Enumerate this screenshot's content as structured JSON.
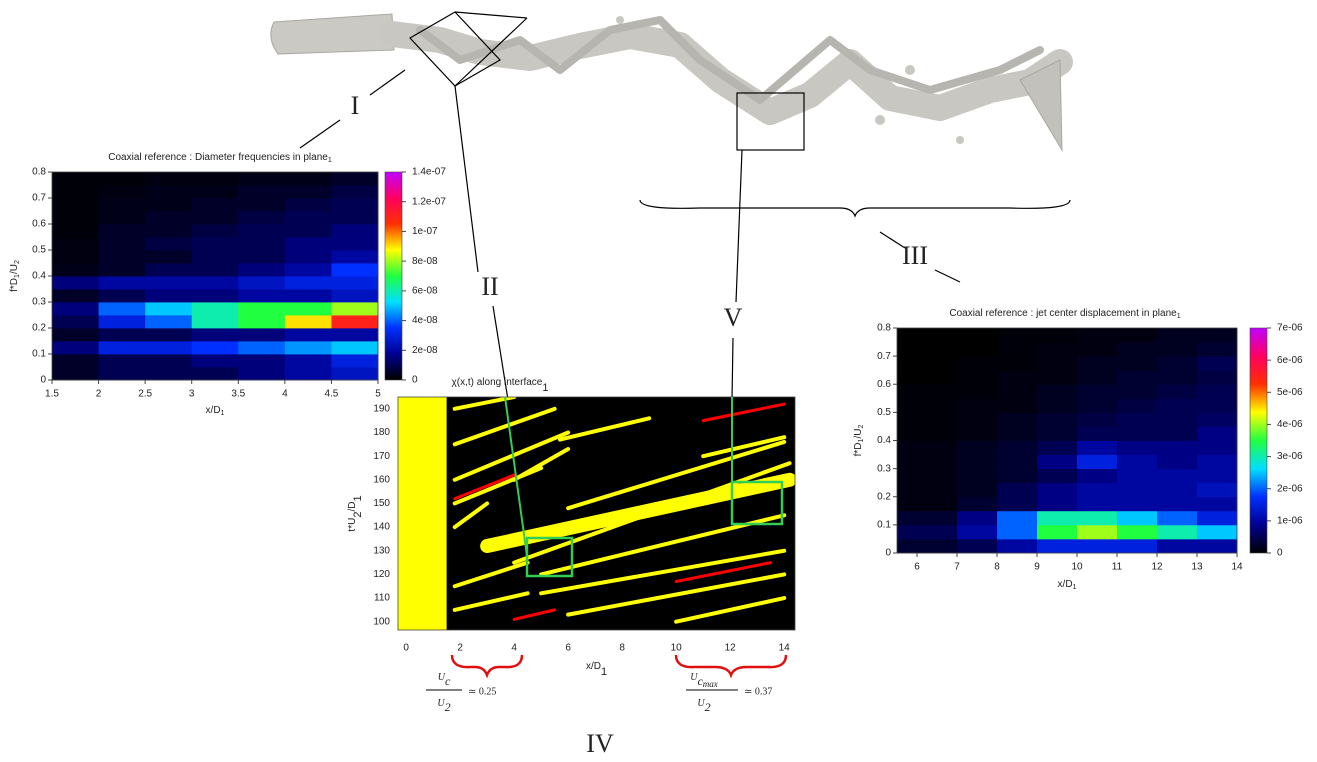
{
  "figure": {
    "labels": [
      "I",
      "II",
      "III",
      "IV",
      "V"
    ],
    "formulas": [
      {
        "num": "U",
        "num_sub": "c",
        "den": "U",
        "den_sub": "2",
        "rel": "≃ 0.25"
      },
      {
        "num": "U",
        "num_sub": "c",
        "num_subsub": "max",
        "den": "U",
        "den_sub": "2",
        "rel": "≃ 0.37"
      }
    ]
  },
  "chart_data": [
    {
      "type": "heatmap",
      "title": [
        {
          "text": "Coaxial reference : Diameter frequencies in plane"
        },
        {
          "text": "1",
          "sub": true
        }
      ],
      "xlabel": [
        {
          "text": "x/D"
        },
        {
          "text": "1",
          "sub": true
        }
      ],
      "ylabel": [
        {
          "text": "f*D"
        },
        {
          "text": "1",
          "sub": true
        },
        {
          "text": "/U"
        },
        {
          "text": "2",
          "sub": true
        }
      ],
      "xlim": [
        1.5,
        5
      ],
      "xticks": [
        1.5,
        2,
        2.5,
        3,
        3.5,
        4,
        4.5,
        5
      ],
      "ylim": [
        0,
        0.8
      ],
      "yticks": [
        0,
        0.1,
        0.2,
        0.3,
        0.4,
        0.5,
        0.6,
        0.7,
        0.8
      ],
      "zlim": [
        0,
        1.4e-07
      ],
      "zticks": [
        0,
        {
          "value": 2e-08,
          "label": "2e-08"
        },
        {
          "value": 4e-08,
          "label": "4e-08"
        },
        {
          "value": 6e-08,
          "label": "6e-08"
        },
        {
          "value": 8e-08,
          "label": "8e-08"
        },
        {
          "value": 1e-07,
          "label": "1e-07"
        },
        {
          "value": 1.2e-07,
          "label": "1.2e-07"
        },
        {
          "value": 1.4e-07,
          "label": "1.4e-07"
        }
      ],
      "colormap": [
        "#000000",
        "#000090",
        "#0030ff",
        "#00e0ff",
        "#20ff40",
        "#ffff00",
        "#ff3000",
        "#ff0060",
        "#c000ff"
      ],
      "xbins": [
        1.5,
        2,
        2.5,
        3,
        3.5,
        4,
        4.5,
        5
      ],
      "ybins": [
        0,
        0.05,
        0.1,
        0.15,
        0.2,
        0.25,
        0.3,
        0.35,
        0.4,
        0.45,
        0.5,
        0.55,
        0.6,
        0.65,
        0.7,
        0.75,
        0.8
      ],
      "z": [
        [
          5e-09,
          1e-08,
          1e-08,
          1e-08,
          1.5e-08,
          2e-08,
          2.5e-08
        ],
        [
          5e-09,
          1e-08,
          1e-08,
          1.5e-08,
          1.5e-08,
          2e-08,
          3e-08
        ],
        [
          1.5e-08,
          3e-08,
          3e-08,
          3.5e-08,
          4e-08,
          4.5e-08,
          5e-08
        ],
        [
          5e-09,
          1e-08,
          1e-08,
          1.5e-08,
          1.5e-08,
          2e-08,
          2e-08
        ],
        [
          1e-08,
          3e-08,
          4e-08,
          6e-08,
          7e-08,
          9e-08,
          1.1e-07
        ],
        [
          1.5e-08,
          4e-08,
          5e-08,
          6e-08,
          7e-08,
          7e-08,
          8e-08
        ],
        [
          5e-09,
          1e-08,
          1.5e-08,
          1.5e-08,
          2e-08,
          2e-08,
          2.5e-08
        ],
        [
          1.5e-08,
          2e-08,
          2e-08,
          2e-08,
          2.5e-08,
          3e-08,
          3e-08
        ],
        [
          3e-09,
          5e-09,
          1e-08,
          1e-08,
          1.5e-08,
          2e-08,
          3.5e-08
        ],
        [
          2e-09,
          5e-09,
          5e-09,
          1e-08,
          1e-08,
          1.5e-08,
          2e-08
        ],
        [
          2e-09,
          5e-09,
          8e-09,
          1e-08,
          1e-08,
          1.5e-08,
          1.5e-08
        ],
        [
          1e-09,
          5e-09,
          5e-09,
          8e-09,
          1e-08,
          1e-08,
          1.5e-08
        ],
        [
          1e-09,
          3e-09,
          5e-09,
          5e-09,
          8e-09,
          1e-08,
          1e-08
        ],
        [
          1e-09,
          3e-09,
          3e-09,
          5e-09,
          5e-09,
          8e-09,
          1e-08
        ],
        [
          1e-09,
          2e-09,
          3e-09,
          3e-09,
          5e-09,
          5e-09,
          8e-09
        ],
        [
          1e-09,
          1e-09,
          2e-09,
          2e-09,
          3e-09,
          3e-09,
          5e-09
        ]
      ]
    },
    {
      "type": "streaks",
      "title": [
        {
          "text": "χ(x,t) along interface"
        },
        {
          "text": "1",
          "sub": true
        }
      ],
      "xlabel": [
        {
          "text": "x/D"
        },
        {
          "text": "1",
          "sub": true
        }
      ],
      "ylabel": [
        {
          "text": "t*U"
        },
        {
          "text": "2",
          "sub": true
        },
        {
          "text": "/D"
        },
        {
          "text": "1",
          "sub": true
        }
      ],
      "xlim": [
        -0.3,
        14.4
      ],
      "xticks": [
        0,
        2,
        4,
        6,
        8,
        10,
        12,
        14
      ],
      "ylim": [
        96.5,
        195
      ],
      "yticks": [
        100,
        110,
        120,
        130,
        140,
        150,
        160,
        170,
        180,
        190
      ],
      "background": "#000000",
      "region": {
        "color": "#ffff00",
        "x": [
          -0.3,
          1.5
        ]
      },
      "series": [
        {
          "color": "#ffff00",
          "width": 4,
          "segments": [
            {
              "x": [
                1.8,
                4
              ],
              "y": [
                190,
                195
              ]
            },
            {
              "x": [
                1.8,
                5.5
              ],
              "y": [
                175,
                190
              ]
            },
            {
              "x": [
                1.8,
                6
              ],
              "y": [
                160,
                180
              ]
            },
            {
              "x": [
                1.8,
                5
              ],
              "y": [
                150,
                165
              ]
            },
            {
              "x": [
                4,
                6
              ],
              "y": [
                160,
                173
              ]
            },
            {
              "x": [
                1.8,
                3
              ],
              "y": [
                140,
                150
              ]
            },
            {
              "x": [
                1.8,
                4.5
              ],
              "y": [
                115,
                125
              ]
            },
            {
              "x": [
                1.8,
                4.5
              ],
              "y": [
                105,
                112
              ]
            },
            {
              "x": [
                4,
                14.2
              ],
              "y": [
                125,
                167
              ]
            },
            {
              "x": [
                6,
                14
              ],
              "y": [
                148,
                176
              ]
            },
            {
              "x": [
                5,
                14
              ],
              "y": [
                120,
                145
              ]
            },
            {
              "x": [
                5,
                14
              ],
              "y": [
                112,
                130
              ]
            },
            {
              "x": [
                6,
                14
              ],
              "y": [
                103,
                120
              ]
            },
            {
              "x": [
                10,
                14
              ],
              "y": [
                100,
                110
              ]
            },
            {
              "x": [
                5.7,
                9
              ],
              "y": [
                177,
                186
              ]
            },
            {
              "x": [
                11,
                14
              ],
              "y": [
                170,
                178
              ]
            }
          ]
        },
        {
          "color": "#ffff00",
          "width": 14,
          "segments": [
            {
              "x": [
                3,
                14.2
              ],
              "y": [
                132,
                160
              ]
            }
          ]
        },
        {
          "color": "#ff0000",
          "width": 3,
          "segments": [
            {
              "x": [
                1.8,
                4
              ],
              "y": [
                152,
                162
              ]
            },
            {
              "x": [
                4,
                5.5
              ],
              "y": [
                101,
                105
              ]
            },
            {
              "x": [
                10,
                13.5
              ],
              "y": [
                117,
                125
              ]
            },
            {
              "x": [
                11,
                14
              ],
              "y": [
                185,
                192
              ]
            }
          ]
        }
      ]
    },
    {
      "type": "heatmap",
      "title": [
        {
          "text": "Coaxial reference : jet center displacement in plane"
        },
        {
          "text": "1",
          "sub": true
        }
      ],
      "xlabel": [
        {
          "text": "x/D"
        },
        {
          "text": "1",
          "sub": true
        }
      ],
      "ylabel": [
        {
          "text": "f*D"
        },
        {
          "text": "1",
          "sub": true
        },
        {
          "text": "/U"
        },
        {
          "text": "2",
          "sub": true
        }
      ],
      "xlim": [
        5.5,
        14
      ],
      "xticks": [
        6,
        7,
        8,
        9,
        10,
        11,
        12,
        13,
        14
      ],
      "ylim": [
        0,
        0.8
      ],
      "yticks": [
        0,
        0.1,
        0.2,
        0.3,
        0.4,
        0.5,
        0.6,
        0.7,
        0.8
      ],
      "zlim": [
        0,
        7e-06
      ],
      "zticks": [
        0,
        {
          "value": 1e-06,
          "label": "1e-06"
        },
        {
          "value": 2e-06,
          "label": "2e-06"
        },
        {
          "value": 3e-06,
          "label": "3e-06"
        },
        {
          "value": 4e-06,
          "label": "4e-06"
        },
        {
          "value": 5e-06,
          "label": "5e-06"
        },
        {
          "value": 6e-06,
          "label": "6e-06"
        },
        {
          "value": 7e-06,
          "label": "7e-06"
        }
      ],
      "colormap": [
        "#000000",
        "#000090",
        "#0030ff",
        "#00e0ff",
        "#20ff40",
        "#ffff00",
        "#ff3000",
        "#ff0060",
        "#c000ff"
      ],
      "xbins": [
        5.5,
        7,
        8,
        9,
        10,
        11,
        12,
        13,
        14
      ],
      "ybins": [
        0,
        0.05,
        0.1,
        0.15,
        0.2,
        0.25,
        0.3,
        0.35,
        0.4,
        0.45,
        0.5,
        0.55,
        0.6,
        0.65,
        0.7,
        0.75,
        0.8
      ],
      "z": [
        [
          3e-07,
          5e-07,
          1e-06,
          1.5e-06,
          1.5e-06,
          1.5e-06,
          1e-06,
          1e-06
        ],
        [
          5e-07,
          1e-06,
          2e-06,
          3.5e-06,
          4e-06,
          3.5e-06,
          3e-06,
          2.5e-06
        ],
        [
          3e-07,
          8e-07,
          2e-06,
          3e-06,
          3e-06,
          2.5e-06,
          2e-06,
          1.5e-06
        ],
        [
          1e-07,
          3e-07,
          5e-07,
          8e-07,
          1e-06,
          1e-06,
          1e-06,
          1e-06
        ],
        [
          1e-07,
          2e-07,
          5e-07,
          8e-07,
          1e-06,
          1e-06,
          1e-06,
          1.2e-06
        ],
        [
          1e-07,
          2e-07,
          3e-07,
          5e-07,
          8e-07,
          1e-06,
          1e-06,
          1e-06
        ],
        [
          1e-07,
          2e-07,
          3e-07,
          8e-07,
          1.5e-06,
          1e-06,
          8e-07,
          1e-06
        ],
        [
          1e-07,
          2e-07,
          3e-07,
          5e-07,
          1e-06,
          8e-07,
          8e-07,
          8e-07
        ],
        [
          5e-08,
          1e-07,
          2e-07,
          3e-07,
          5e-07,
          5e-07,
          5e-07,
          8e-07
        ],
        [
          5e-08,
          1e-07,
          2e-07,
          3e-07,
          4e-07,
          5e-07,
          5e-07,
          6e-07
        ],
        [
          5e-08,
          1e-07,
          1e-07,
          2e-07,
          3e-07,
          4e-07,
          5e-07,
          5e-07
        ],
        [
          5e-08,
          5e-08,
          1e-07,
          2e-07,
          3e-07,
          3e-07,
          4e-07,
          5e-07
        ],
        [
          0,
          5e-08,
          1e-07,
          1e-07,
          2e-07,
          3e-07,
          3e-07,
          4e-07
        ],
        [
          0,
          5e-08,
          5e-08,
          1e-07,
          2e-07,
          2e-07,
          3e-07,
          5e-07
        ],
        [
          0,
          0,
          5e-08,
          1e-07,
          1e-07,
          2e-07,
          2e-07,
          3e-07
        ],
        [
          0,
          0,
          5e-08,
          5e-08,
          1e-07,
          1e-07,
          2e-07,
          2e-07
        ]
      ]
    }
  ]
}
